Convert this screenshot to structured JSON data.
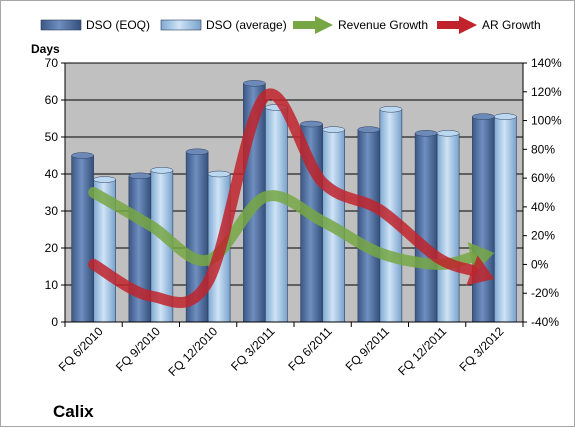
{
  "chart_data": {
    "type": "bar",
    "title": "Calix",
    "ylabel": "Days",
    "ylim": [
      0,
      70
    ],
    "y2lim": [
      -40,
      140
    ],
    "yticks": [
      "0",
      "10",
      "20",
      "30",
      "40",
      "50",
      "60",
      "70"
    ],
    "y2ticks": [
      "-40%",
      "-20%",
      "0%",
      "20%",
      "40%",
      "60%",
      "80%",
      "100%",
      "120%",
      "140%"
    ],
    "categories": [
      "FQ 6/2010",
      "FQ 9/2010",
      "FQ 12/2010",
      "FQ 3/2011",
      "FQ 6/2011",
      "FQ 9/2011",
      "FQ 12/2011",
      "FQ 3/2012"
    ],
    "grid": true,
    "legend": "top",
    "series": [
      {
        "name": "DSO (EOQ)",
        "kind": "bar",
        "axis": "left",
        "color": "#4f6d9d",
        "values": [
          45,
          39.5,
          46,
          64.5,
          53.5,
          52,
          51,
          55.5
        ]
      },
      {
        "name": "DSO (average)",
        "kind": "bar",
        "axis": "left",
        "color": "#9cc3e6",
        "values": [
          38.5,
          41,
          40,
          58,
          52,
          57.5,
          51,
          55.5
        ]
      },
      {
        "name": "Revenue Growth",
        "kind": "trend-arrow",
        "axis": "right",
        "color": "#77a744",
        "values": [
          50,
          27,
          3,
          47,
          30,
          8,
          0,
          8
        ]
      },
      {
        "name": "AR Growth",
        "kind": "trend-arrow",
        "axis": "right",
        "color": "#c0232c",
        "values": [
          0,
          -22,
          -12,
          117,
          57,
          38,
          5,
          -10
        ]
      }
    ]
  },
  "colors": {
    "plot_bg": "#c0c0c0",
    "grid": "#000000"
  }
}
